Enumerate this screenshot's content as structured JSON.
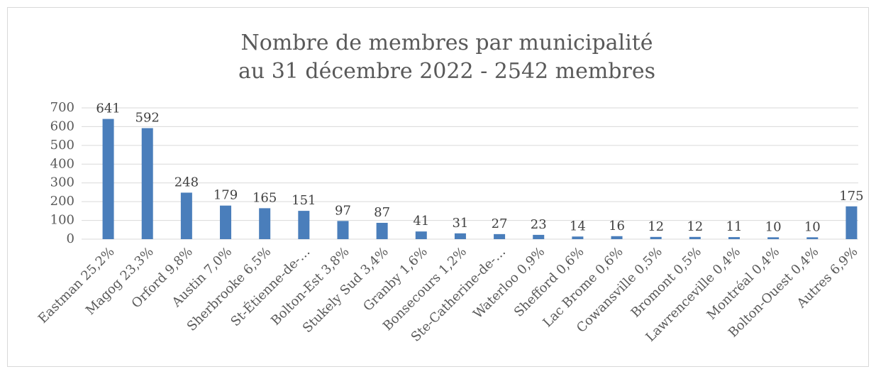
{
  "chart_data": {
    "type": "bar",
    "title": [
      "Nombre de membres par municipalité",
      "au 31 décembre 2022 - 2542 membres"
    ],
    "categories": [
      "Eastman 25,2%",
      "Magog 23,3%",
      "Orford 9,8%",
      "Austin 7,0%",
      "Sherbrooke 6,5%",
      "St-Étienne-de-…",
      "Bolton-Est 3,8%",
      "Stukely Sud 3,4%",
      "Granby 1,6%",
      "Bonsecours 1,2%",
      "Ste-Catherine-de-…",
      "Waterloo 0,9%",
      "Shefford 0,6%",
      "Lac Brome 0,6%",
      "Cowansville 0,5%",
      "Bromont 0,5%",
      "Lawrenceville 0,4%",
      "Montréal 0,4%",
      "Bolton-Ouest 0,4%",
      "Autres 6,9%"
    ],
    "values": [
      641,
      592,
      248,
      179,
      165,
      151,
      97,
      87,
      41,
      31,
      27,
      23,
      14,
      16,
      12,
      12,
      11,
      10,
      10,
      175
    ],
    "color": "#4a7ebb",
    "ylim": [
      0,
      700
    ],
    "yticks": [
      0,
      100,
      200,
      300,
      400,
      500,
      600,
      700
    ],
    "grid": true
  }
}
